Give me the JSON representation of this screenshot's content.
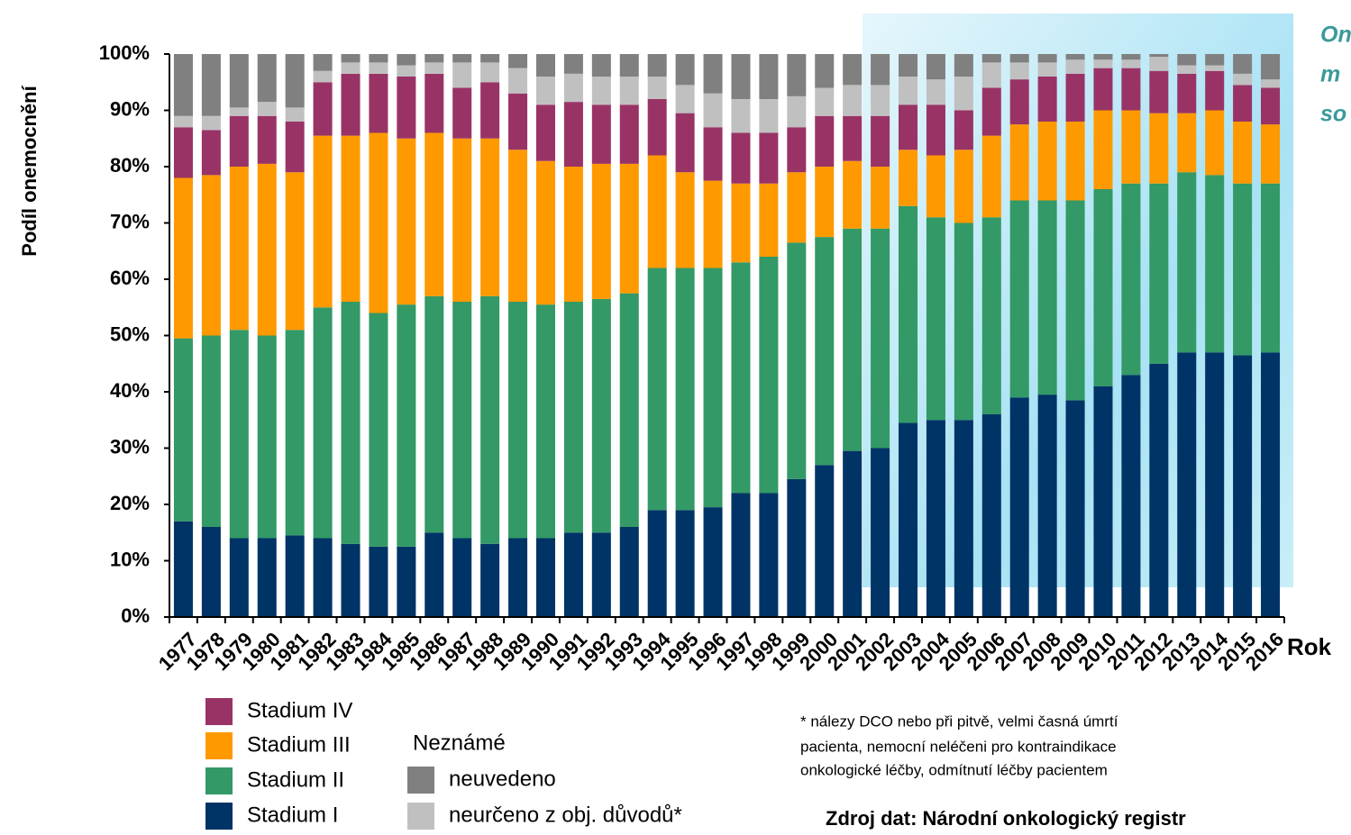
{
  "chart_data": {
    "type": "stacked_bar",
    "y_label": "Podíl onemocnění",
    "x_label": "Rok",
    "annotation_lines": [
      "On",
      "m",
      "so"
    ],
    "legend_group_title": "Neznámé",
    "footnote_lines": [
      "* nálezy DCO nebo při pitvě, velmi časná úmrtí",
      "pacienta, nemocní neléčeni pro kontraindikace",
      "onkologické léčby, odmítnutí léčby pacientem"
    ],
    "source": "Zdroj dat: Národní onkologický registr",
    "categories": [
      "1977",
      "1978",
      "1979",
      "1980",
      "1981",
      "1982",
      "1983",
      "1984",
      "1985",
      "1986",
      "1987",
      "1988",
      "1989",
      "1990",
      "1991",
      "1992",
      "1993",
      "1994",
      "1995",
      "1996",
      "1997",
      "1998",
      "1999",
      "2000",
      "2001",
      "2002",
      "2003",
      "2004",
      "2005",
      "2006",
      "2007",
      "2008",
      "2009",
      "2010",
      "2011",
      "2012",
      "2013",
      "2014",
      "2015",
      "2016"
    ],
    "series": [
      {
        "name": "Stadium I",
        "color": "#003366",
        "values": [
          17,
          16,
          14,
          14,
          14.5,
          14,
          13,
          12.5,
          12.5,
          15,
          14,
          13,
          14,
          14,
          15,
          15,
          16,
          19,
          19,
          19.5,
          22,
          22,
          24.5,
          27,
          29.5,
          30,
          34.5,
          35,
          35,
          36,
          39,
          39.5,
          38.5,
          41,
          43,
          45,
          47,
          47,
          46.5,
          47
        ]
      },
      {
        "name": "Stadium II",
        "color": "#339966",
        "values": [
          32.5,
          34,
          37,
          36,
          36.5,
          41,
          43,
          41.5,
          43,
          42,
          42,
          44,
          42,
          41.5,
          41,
          41.5,
          41.5,
          43,
          43,
          42.5,
          41,
          42,
          42,
          40.5,
          39.5,
          39,
          38.5,
          36,
          35,
          35,
          35,
          34.5,
          35.5,
          35,
          34,
          32,
          32,
          31.5,
          30.5,
          30
        ]
      },
      {
        "name": "Stadium III",
        "color": "#ff9900",
        "values": [
          28.5,
          28.5,
          29,
          30.5,
          28,
          30.5,
          29.5,
          32,
          29.5,
          29,
          29,
          28,
          27,
          25.5,
          24,
          24,
          23,
          20,
          17,
          15.5,
          14,
          13,
          12.5,
          12.5,
          12,
          11,
          10,
          11,
          13,
          14.5,
          13.5,
          14,
          14,
          14,
          13,
          12.5,
          10.5,
          11.5,
          11,
          10.5
        ]
      },
      {
        "name": "Stadium IV",
        "color": "#993366",
        "values": [
          9,
          8,
          9,
          8.5,
          9,
          9.5,
          11,
          10.5,
          11,
          10.5,
          9,
          10,
          10,
          10,
          11.5,
          10.5,
          10.5,
          10,
          10.5,
          9.5,
          9,
          9,
          8,
          9,
          8,
          9,
          8,
          9,
          7,
          8.5,
          8,
          8,
          8.5,
          7.5,
          7.5,
          7.5,
          7,
          7,
          6.5,
          6.5
        ]
      },
      {
        "name": "neurčeno z obj. důvodů*",
        "color": "#c0c0c0",
        "values": [
          2,
          2.5,
          1.5,
          2.5,
          2.5,
          2,
          2,
          2,
          2,
          2,
          4.5,
          3.5,
          4.5,
          5,
          5,
          5,
          5,
          4,
          5,
          6,
          6,
          6,
          5.5,
          5,
          5.5,
          5.5,
          5,
          4.5,
          6,
          4.5,
          3,
          2.5,
          2.5,
          1.5,
          1.5,
          2.5,
          1.5,
          1,
          2,
          1.5
        ]
      },
      {
        "name": "neuvedeno",
        "color": "#808080",
        "values": [
          11,
          11,
          9.5,
          8.5,
          9.5,
          3,
          1.5,
          1.5,
          2,
          1.5,
          1.5,
          1.5,
          2.5,
          4,
          3.5,
          4,
          4,
          4,
          5.5,
          7,
          8,
          8,
          7.5,
          6,
          5.5,
          5.5,
          4,
          4.5,
          4,
          1.5,
          1.5,
          1.5,
          1,
          1,
          1,
          0.5,
          2,
          2,
          3.5,
          4.5
        ]
      }
    ],
    "ylim": [
      0,
      100
    ],
    "yticks": [
      {
        "value": 0,
        "label": "0%"
      },
      {
        "value": 10,
        "label": "10%"
      },
      {
        "value": 20,
        "label": "20%"
      },
      {
        "value": 30,
        "label": "30%"
      },
      {
        "value": 40,
        "label": "40%"
      },
      {
        "value": 50,
        "label": "50%"
      },
      {
        "value": 60,
        "label": "60%"
      },
      {
        "value": 70,
        "label": "70%"
      },
      {
        "value": 80,
        "label": "80%"
      },
      {
        "value": 90,
        "label": "90%"
      },
      {
        "value": 100,
        "label": "100%"
      }
    ]
  }
}
